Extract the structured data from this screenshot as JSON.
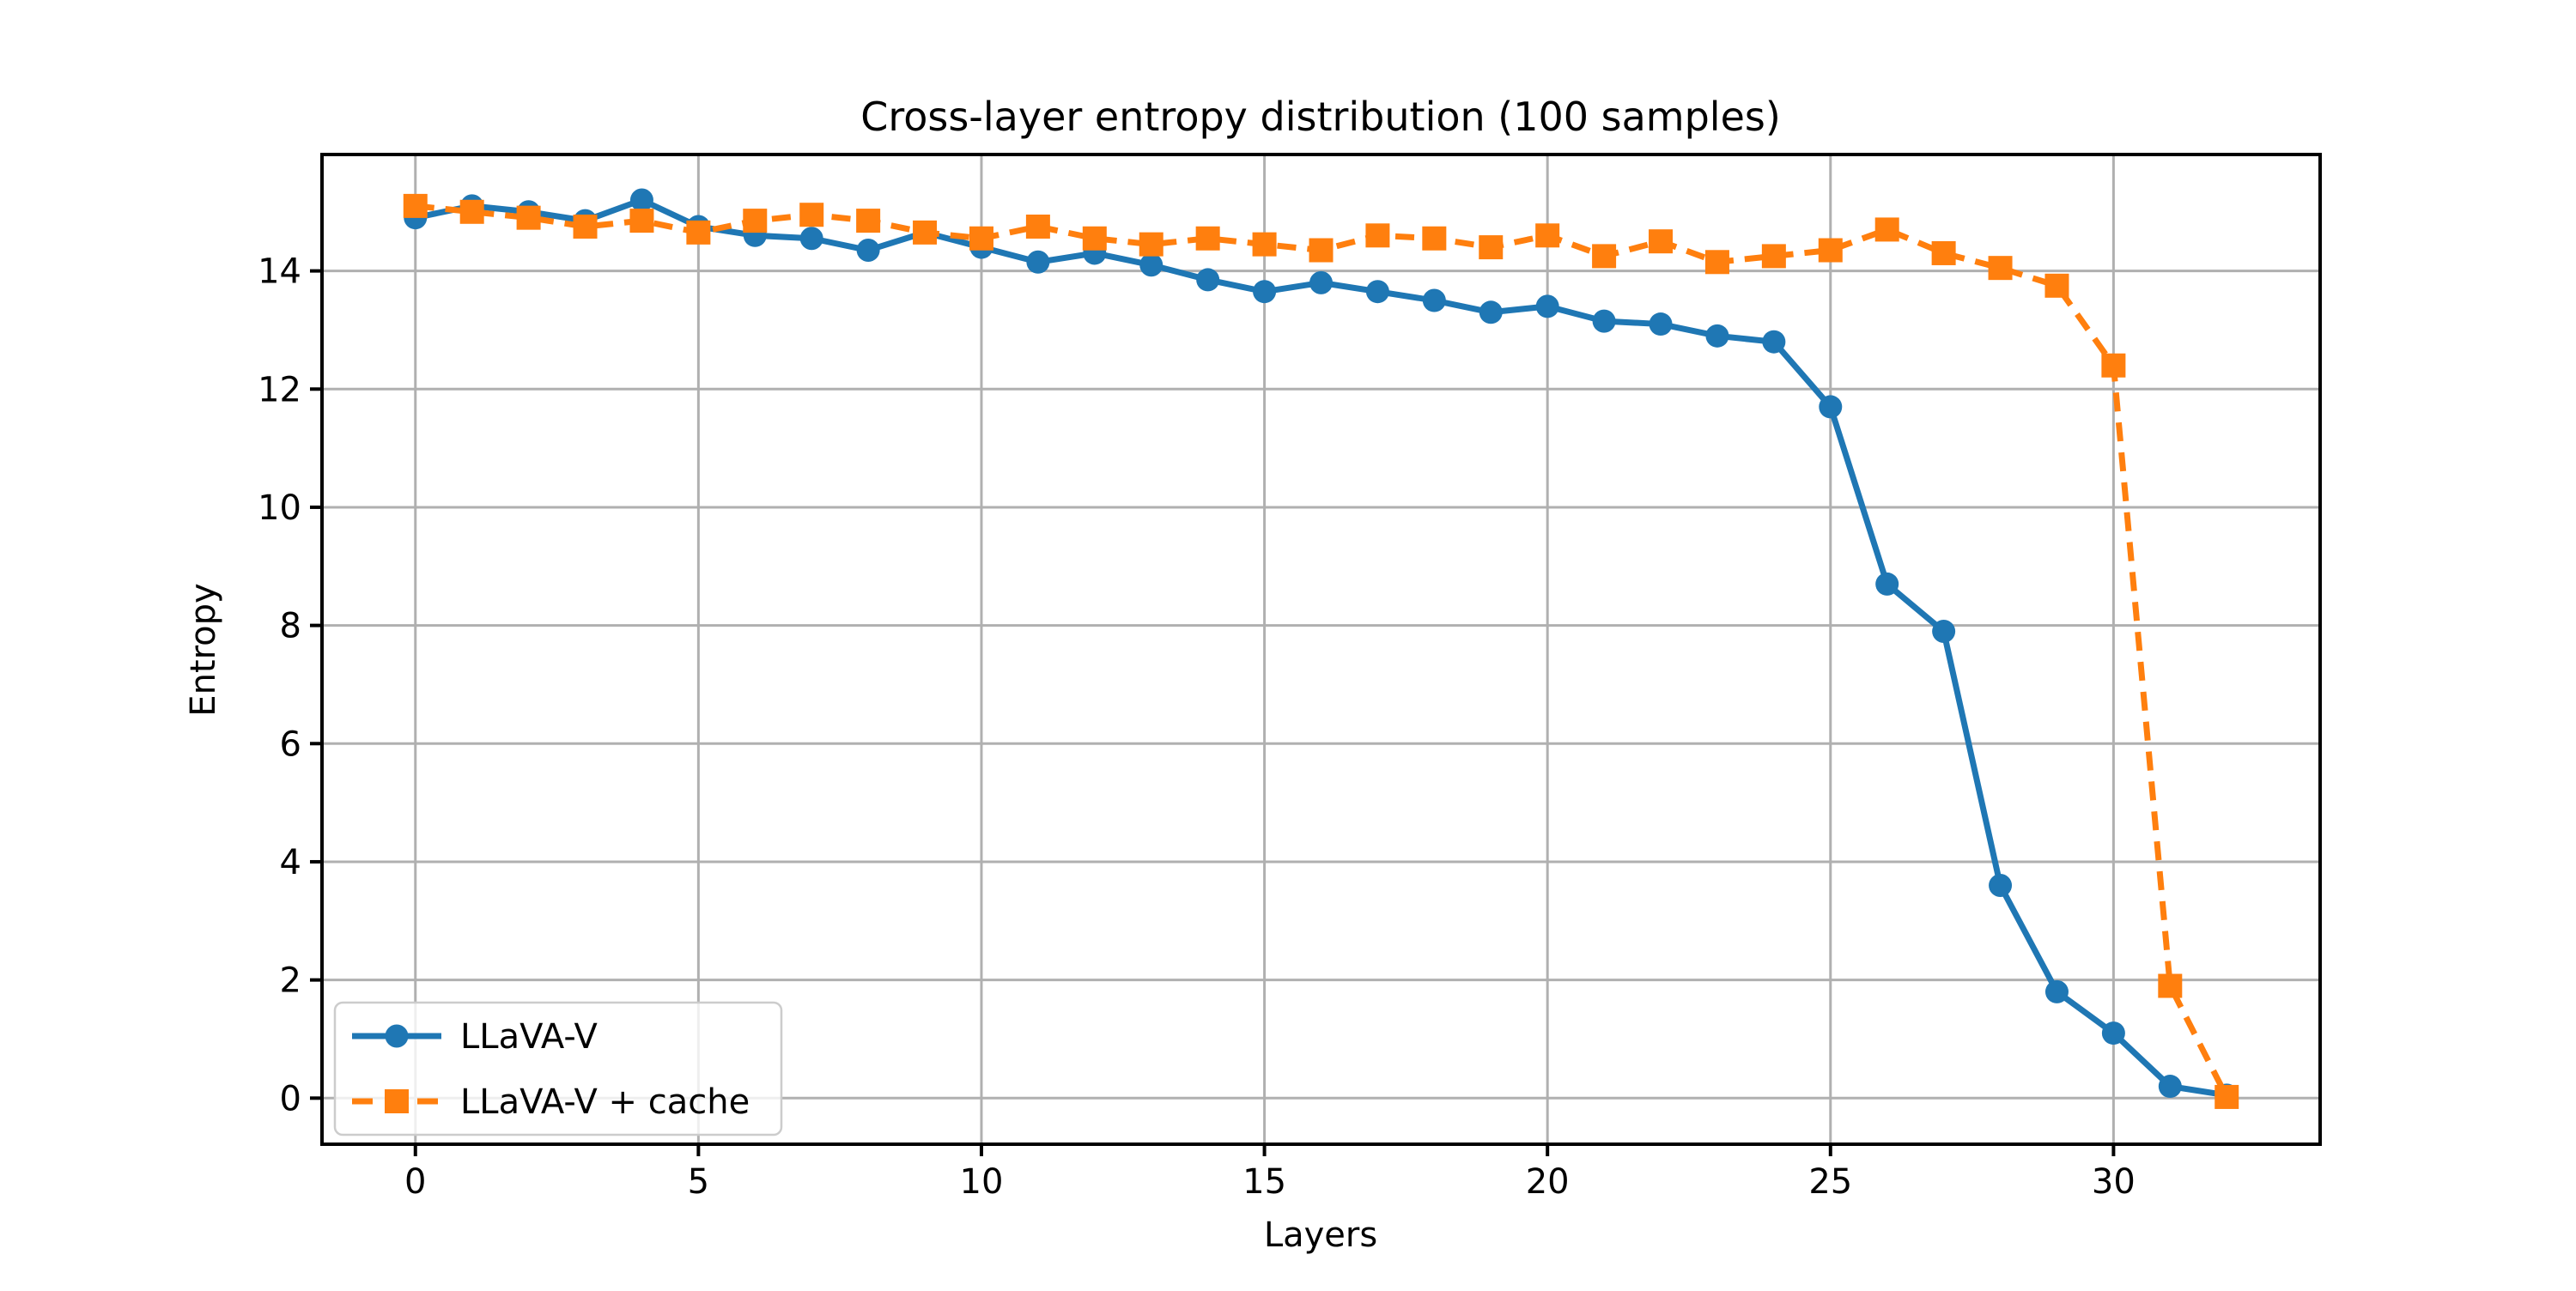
{
  "figure": {
    "background": "#ffffff",
    "plot_background": "#ffffff",
    "spine_color": "#000000"
  },
  "chart_data": {
    "type": "line",
    "title": "Cross-layer entropy distribution (100 samples)",
    "xlabel": "Layers",
    "ylabel": "Entropy",
    "x": [
      0,
      1,
      2,
      3,
      4,
      5,
      6,
      7,
      8,
      9,
      10,
      11,
      12,
      13,
      14,
      15,
      16,
      17,
      18,
      19,
      20,
      21,
      22,
      23,
      24,
      25,
      26,
      27,
      28,
      29,
      30,
      31,
      32
    ],
    "series": [
      {
        "name": "LLaVA-V",
        "color": "#1f77b4",
        "marker": "circle",
        "linestyle": "solid",
        "values": [
          14.9,
          15.1,
          15.0,
          14.85,
          15.2,
          14.75,
          14.6,
          14.55,
          14.35,
          14.65,
          14.4,
          14.15,
          14.3,
          14.1,
          13.85,
          13.65,
          13.8,
          13.65,
          13.5,
          13.3,
          13.4,
          13.15,
          13.1,
          12.9,
          12.8,
          11.7,
          8.7,
          7.9,
          3.6,
          1.8,
          1.1,
          0.2,
          0.05
        ]
      },
      {
        "name": "LLaVA-V + cache",
        "color": "#ff7f0e",
        "marker": "square",
        "linestyle": "dashed",
        "values": [
          15.1,
          15.0,
          14.9,
          14.75,
          14.85,
          14.65,
          14.85,
          14.95,
          14.85,
          14.65,
          14.55,
          14.75,
          14.55,
          14.45,
          14.55,
          14.45,
          14.35,
          14.6,
          14.55,
          14.4,
          14.6,
          14.25,
          14.5,
          14.15,
          14.25,
          14.35,
          14.7,
          14.3,
          14.05,
          13.75,
          12.4,
          1.9,
          0.02
        ]
      }
    ],
    "xticks": [
      0,
      5,
      10,
      15,
      20,
      25,
      30
    ],
    "yticks": [
      0,
      2,
      4,
      6,
      8,
      10,
      12,
      14
    ],
    "xlim": [
      -1.65,
      33.65
    ],
    "ylim": [
      -0.78,
      15.97
    ],
    "grid": true,
    "grid_color": "#b0b0b0",
    "legend_position": "lower left"
  }
}
